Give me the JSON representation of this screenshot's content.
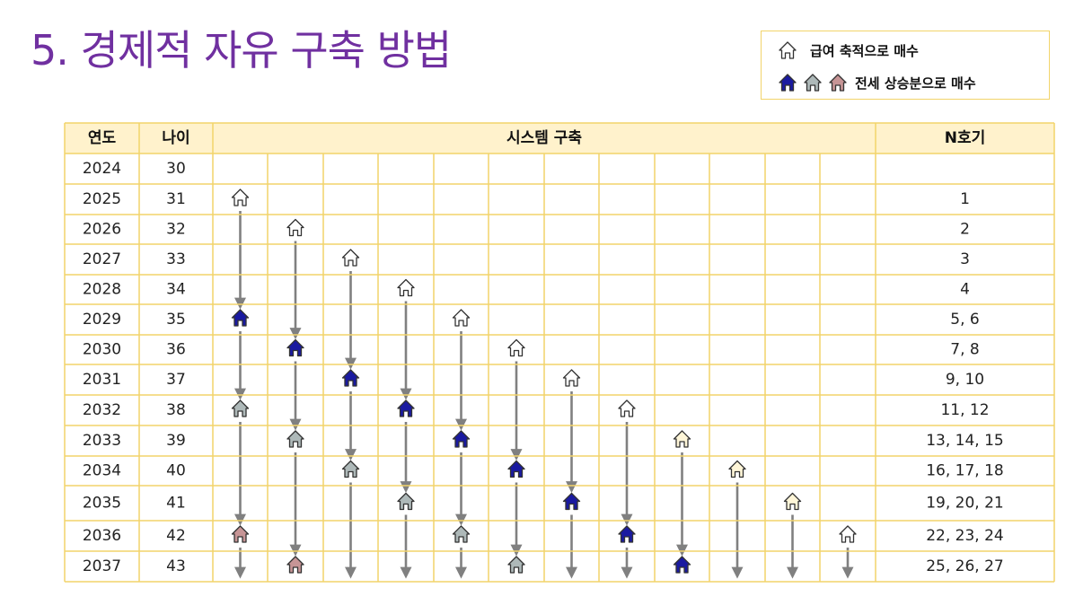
{
  "title": "5. 경제적 자유 구축 방법",
  "legend": {
    "item1": {
      "label": "급여 축적으로 매수",
      "icon": "house-white-icon"
    },
    "item2": {
      "label": "전세 상승분으로 매수",
      "icons": [
        "house-navy-icon",
        "house-gray-icon",
        "house-pink-icon"
      ]
    }
  },
  "colors": {
    "title": "#7030a0",
    "grid": "#f2d46a",
    "header_bg": "#fff2cc",
    "arrow": "#808080",
    "house_white": "#ffffff",
    "house_navy": "#1a1aa0",
    "house_gray": "#aeb9b9",
    "house_pink": "#c79596",
    "house_cream": "#fff6d8"
  },
  "table": {
    "headers": {
      "year": "연도",
      "age": "나이",
      "system": "시스템 구축",
      "count": "N호기"
    },
    "rows": [
      {
        "year": "2024",
        "age": "30",
        "count": ""
      },
      {
        "year": "2025",
        "age": "31",
        "count": "1"
      },
      {
        "year": "2026",
        "age": "32",
        "count": "2"
      },
      {
        "year": "2027",
        "age": "33",
        "count": "3"
      },
      {
        "year": "2028",
        "age": "34",
        "count": "4"
      },
      {
        "year": "2029",
        "age": "35",
        "count": "5, 6"
      },
      {
        "year": "2030",
        "age": "36",
        "count": "7, 8"
      },
      {
        "year": "2031",
        "age": "37",
        "count": "9, 10"
      },
      {
        "year": "2032",
        "age": "38",
        "count": "11, 12"
      },
      {
        "year": "2033",
        "age": "39",
        "count": "13, 14, 15"
      },
      {
        "year": "2034",
        "age": "40",
        "count": "16, 17, 18"
      },
      {
        "year": "2035",
        "age": "41",
        "count": "19, 20, 21"
      },
      {
        "year": "2036",
        "age": "42",
        "count": "22, 23, 24"
      },
      {
        "year": "2037",
        "age": "43",
        "count": "25, 26, 27"
      }
    ],
    "columns": [
      {
        "houses": [
          {
            "row": 1,
            "kind": "white"
          },
          {
            "row": 5,
            "kind": "navy"
          },
          {
            "row": 8,
            "kind": "gray"
          },
          {
            "row": 12,
            "kind": "pink"
          }
        ]
      },
      {
        "houses": [
          {
            "row": 2,
            "kind": "white"
          },
          {
            "row": 6,
            "kind": "navy"
          },
          {
            "row": 9,
            "kind": "gray"
          },
          {
            "row": 13,
            "kind": "pink"
          }
        ]
      },
      {
        "houses": [
          {
            "row": 3,
            "kind": "white"
          },
          {
            "row": 7,
            "kind": "navy"
          },
          {
            "row": 10,
            "kind": "gray"
          }
        ]
      },
      {
        "houses": [
          {
            "row": 4,
            "kind": "white"
          },
          {
            "row": 8,
            "kind": "navy"
          },
          {
            "row": 11,
            "kind": "gray"
          }
        ]
      },
      {
        "houses": [
          {
            "row": 5,
            "kind": "white"
          },
          {
            "row": 9,
            "kind": "navy"
          },
          {
            "row": 12,
            "kind": "gray"
          }
        ]
      },
      {
        "houses": [
          {
            "row": 6,
            "kind": "white"
          },
          {
            "row": 10,
            "kind": "navy"
          },
          {
            "row": 13,
            "kind": "gray"
          }
        ]
      },
      {
        "houses": [
          {
            "row": 7,
            "kind": "white"
          },
          {
            "row": 11,
            "kind": "navy"
          }
        ]
      },
      {
        "houses": [
          {
            "row": 8,
            "kind": "white"
          },
          {
            "row": 12,
            "kind": "navy"
          }
        ]
      },
      {
        "houses": [
          {
            "row": 9,
            "kind": "cream"
          },
          {
            "row": 13,
            "kind": "navy"
          }
        ]
      },
      {
        "houses": [
          {
            "row": 10,
            "kind": "cream"
          }
        ]
      },
      {
        "houses": [
          {
            "row": 11,
            "kind": "cream"
          }
        ]
      },
      {
        "houses": [
          {
            "row": 12,
            "kind": "white"
          }
        ]
      }
    ]
  }
}
